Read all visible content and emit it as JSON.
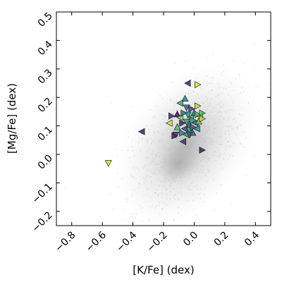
{
  "chart_data": {
    "type": "scatter",
    "title": "",
    "xlabel": "[K/Fe] (dex)",
    "ylabel": "[Mg/Fe] (dex)",
    "xlim": [
      -0.9,
      0.5
    ],
    "ylim": [
      -0.25,
      0.5
    ],
    "xticks": [
      "−0.8",
      "−0.6",
      "−0.4",
      "−0.2",
      "0.0",
      "0.2",
      "0.4"
    ],
    "yticks": [
      "−0.2",
      "−0.1",
      "0.0",
      "0.1",
      "0.2",
      "0.3",
      "0.4",
      "0.5"
    ],
    "grid": false,
    "legend": "none",
    "background": {
      "type": "density",
      "color": "#b3b3b3",
      "description_center": [
        -0.1,
        0.0
      ]
    },
    "series": [
      {
        "marker": "triangles",
        "colormap": "viridis",
        "points": [
          {
            "x": -0.04,
            "y": 0.25,
            "dir": "left",
            "c": 0.1
          },
          {
            "x": 0.02,
            "y": 0.245,
            "dir": "right",
            "c": 0.95
          },
          {
            "x": -0.06,
            "y": 0.195,
            "dir": "up",
            "c": 0.45
          },
          {
            "x": -0.09,
            "y": 0.18,
            "dir": "left",
            "c": 0.6
          },
          {
            "x": -0.05,
            "y": 0.165,
            "dir": "down",
            "c": 0.3
          },
          {
            "x": -0.02,
            "y": 0.16,
            "dir": "right",
            "c": 0.2
          },
          {
            "x": 0.02,
            "y": 0.17,
            "dir": "right",
            "c": 0.9
          },
          {
            "x": -0.15,
            "y": 0.135,
            "dir": "right",
            "c": 0.15
          },
          {
            "x": -0.11,
            "y": 0.14,
            "dir": "up",
            "c": 0.05
          },
          {
            "x": -0.09,
            "y": 0.13,
            "dir": "left",
            "c": 0.8
          },
          {
            "x": -0.07,
            "y": 0.145,
            "dir": "right",
            "c": 0.35
          },
          {
            "x": -0.04,
            "y": 0.14,
            "dir": "down",
            "c": 0.5
          },
          {
            "x": -0.02,
            "y": 0.13,
            "dir": "left",
            "c": 0.65
          },
          {
            "x": 0.0,
            "y": 0.145,
            "dir": "up",
            "c": 0.4
          },
          {
            "x": 0.02,
            "y": 0.14,
            "dir": "right",
            "c": 0.75
          },
          {
            "x": 0.04,
            "y": 0.135,
            "dir": "left",
            "c": 0.85
          },
          {
            "x": 0.05,
            "y": 0.145,
            "dir": "right",
            "c": 0.7
          },
          {
            "x": -0.16,
            "y": 0.11,
            "dir": "left",
            "c": 0.95
          },
          {
            "x": -0.08,
            "y": 0.11,
            "dir": "right",
            "c": 0.1
          },
          {
            "x": -0.05,
            "y": 0.115,
            "dir": "down",
            "c": 0.55
          },
          {
            "x": -0.03,
            "y": 0.105,
            "dir": "up",
            "c": 0.3
          },
          {
            "x": -0.01,
            "y": 0.12,
            "dir": "right",
            "c": 0.6
          },
          {
            "x": 0.01,
            "y": 0.11,
            "dir": "left",
            "c": 0.45
          },
          {
            "x": 0.03,
            "y": 0.115,
            "dir": "up",
            "c": 0.8
          },
          {
            "x": 0.05,
            "y": 0.125,
            "dir": "right",
            "c": 0.9
          },
          {
            "x": -0.11,
            "y": 0.095,
            "dir": "up",
            "c": 0.7
          },
          {
            "x": -0.06,
            "y": 0.09,
            "dir": "left",
            "c": 0.2
          },
          {
            "x": -0.03,
            "y": 0.085,
            "dir": "down",
            "c": 0.65
          },
          {
            "x": -0.01,
            "y": 0.095,
            "dir": "right",
            "c": 0.35
          },
          {
            "x": 0.02,
            "y": 0.09,
            "dir": "left",
            "c": 0.5
          },
          {
            "x": -0.08,
            "y": 0.075,
            "dir": "right",
            "c": 0.45
          },
          {
            "x": -0.05,
            "y": 0.07,
            "dir": "left",
            "c": 0.55
          },
          {
            "x": -0.03,
            "y": 0.07,
            "dir": "down",
            "c": 0.4
          },
          {
            "x": -0.01,
            "y": 0.075,
            "dir": "up",
            "c": 0.25
          },
          {
            "x": -0.13,
            "y": 0.065,
            "dir": "right",
            "c": 0.05
          },
          {
            "x": -0.12,
            "y": 0.07,
            "dir": "down",
            "c": 0.15
          },
          {
            "x": -0.34,
            "y": 0.08,
            "dir": "left",
            "c": 0.1
          },
          {
            "x": -0.07,
            "y": 0.045,
            "dir": "left",
            "c": 0.15
          },
          {
            "x": 0.05,
            "y": 0.015,
            "dir": "right",
            "c": 0.1
          },
          {
            "x": -0.56,
            "y": -0.03,
            "dir": "down",
            "c": 0.95
          }
        ]
      }
    ]
  }
}
